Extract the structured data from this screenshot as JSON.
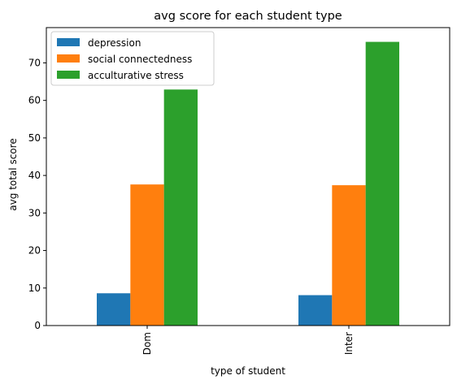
{
  "chart_data": {
    "type": "bar",
    "title": "avg score for each student type",
    "xlabel": "type of student",
    "ylabel": "avg total score",
    "categories": [
      "Dom",
      "Inter"
    ],
    "series": [
      {
        "name": "depression",
        "color": "#1f77b4",
        "values": [
          8.6,
          8.1
        ]
      },
      {
        "name": "social connectedness",
        "color": "#ff7f0e",
        "values": [
          37.6,
          37.4
        ]
      },
      {
        "name": "acculturative stress",
        "color": "#2ca02c",
        "values": [
          62.9,
          75.6
        ]
      }
    ],
    "ylim": [
      0,
      79.4
    ],
    "yticks": [
      0,
      10,
      20,
      30,
      40,
      50,
      60,
      70
    ],
    "legend_position": "top-left",
    "grid": false
  }
}
